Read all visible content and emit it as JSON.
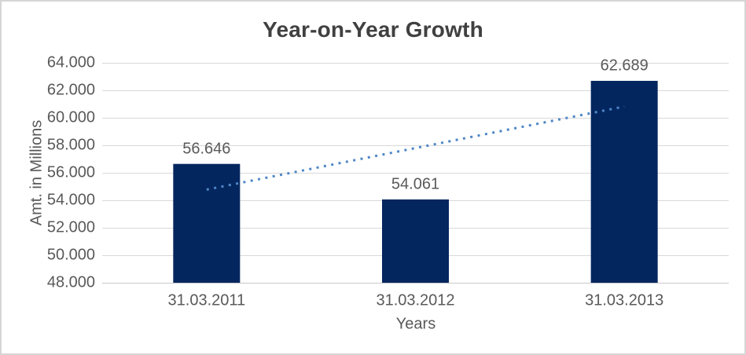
{
  "chart_data": {
    "type": "bar",
    "title": "Year-on-Year Growth",
    "xlabel": "Years",
    "ylabel": "Amt. in Millions",
    "categories": [
      "31.03.2011",
      "31.03.2012",
      "31.03.2013"
    ],
    "values": [
      56646,
      54061,
      62689
    ],
    "data_labels": [
      "56.646",
      "54.061",
      "62.689"
    ],
    "y_ticks": [
      {
        "value": 48000,
        "label": "48.000"
      },
      {
        "value": 50000,
        "label": "50.000"
      },
      {
        "value": 52000,
        "label": "52.000"
      },
      {
        "value": 54000,
        "label": "54.000"
      },
      {
        "value": 56000,
        "label": "56.000"
      },
      {
        "value": 58000,
        "label": "58.000"
      },
      {
        "value": 60000,
        "label": "60.000"
      },
      {
        "value": 62000,
        "label": "62.000"
      },
      {
        "value": 64000,
        "label": "64.000"
      }
    ],
    "ylim": [
      48000,
      64000
    ],
    "grid": true,
    "legend": "none",
    "trendline": {
      "type": "linear",
      "line_style": "dotted",
      "color": "#4e87c7"
    },
    "colors": {
      "bar": "#04265f",
      "gridline": "#d9d9d9",
      "axis_line": "#c9c9c9",
      "tick_text": "#595959",
      "title_text": "#404040",
      "border": "#d5d5d5",
      "background": "#ffffff"
    }
  }
}
